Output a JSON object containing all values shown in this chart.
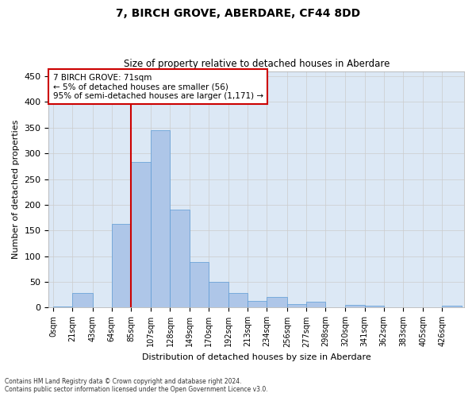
{
  "title": "7, BIRCH GROVE, ABERDARE, CF44 8DD",
  "subtitle": "Size of property relative to detached houses in Aberdare",
  "xlabel": "Distribution of detached houses by size in Aberdare",
  "ylabel": "Number of detached properties",
  "bin_labels": [
    "0sqm",
    "21sqm",
    "43sqm",
    "64sqm",
    "85sqm",
    "107sqm",
    "128sqm",
    "149sqm",
    "170sqm",
    "192sqm",
    "213sqm",
    "234sqm",
    "256sqm",
    "277sqm",
    "298sqm",
    "320sqm",
    "341sqm",
    "362sqm",
    "383sqm",
    "405sqm",
    "426sqm"
  ],
  "bar_values": [
    2,
    28,
    0,
    163,
    284,
    345,
    191,
    89,
    50,
    28,
    13,
    20,
    7,
    11,
    0,
    5,
    4,
    0,
    0,
    0,
    4
  ],
  "bar_color": "#aec6e8",
  "bar_edge_color": "#5b9bd5",
  "grid_color": "#cccccc",
  "background_color": "#dce8f5",
  "property_line_x": 85,
  "property_line_color": "#cc0000",
  "annotation_text": "7 BIRCH GROVE: 71sqm\n← 5% of detached houses are smaller (56)\n95% of semi-detached houses are larger (1,171) →",
  "annotation_box_color": "#cc0000",
  "ylim": [
    0,
    460
  ],
  "yticks": [
    0,
    50,
    100,
    150,
    200,
    250,
    300,
    350,
    400,
    450
  ],
  "footnote": "Contains HM Land Registry data © Crown copyright and database right 2024.\nContains public sector information licensed under the Open Government Licence v3.0."
}
